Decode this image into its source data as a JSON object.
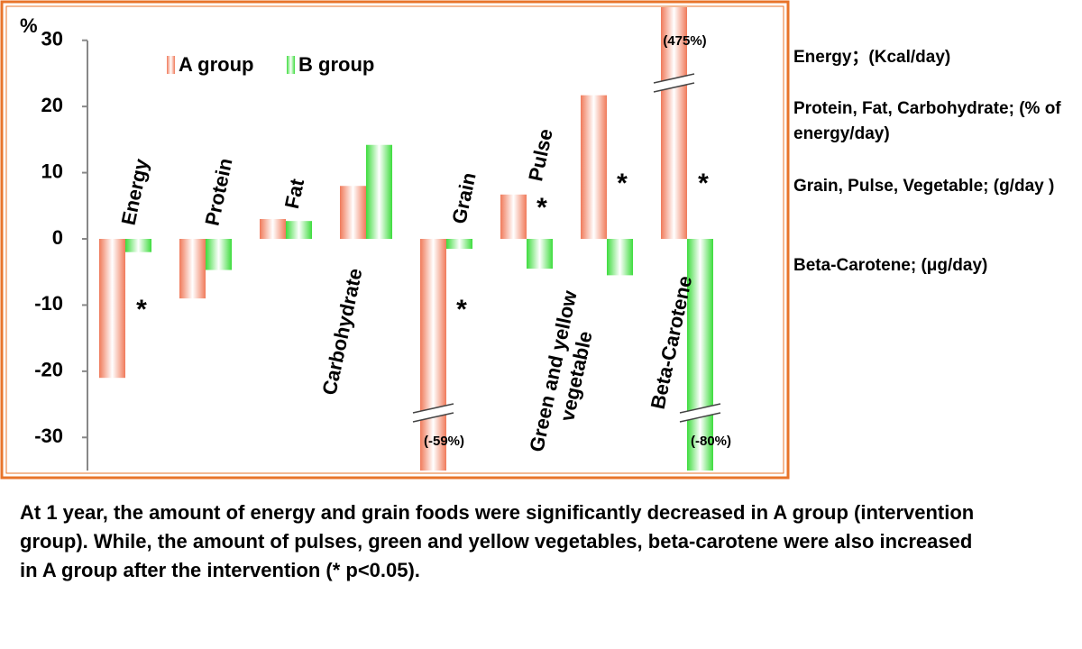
{
  "chart_data": {
    "type": "bar",
    "y_unit": "%",
    "categories": [
      "Energy",
      "Protein",
      "Fat",
      "Carbohydrate",
      "Grain",
      "Pulse",
      "Green and yellow vegetable",
      "Beta-Carotene"
    ],
    "series": [
      {
        "name": "A group",
        "color": "#f07a5a",
        "values": [
          -21,
          -9,
          3,
          8,
          -59,
          6.7,
          21.7,
          475
        ],
        "value_labels": [
          null,
          null,
          null,
          null,
          "(-59%)",
          null,
          null,
          "(475%)"
        ]
      },
      {
        "name": "B group",
        "color": "#3ddc3d",
        "values": [
          -2,
          -4.7,
          2.7,
          14.2,
          -1.5,
          -4.5,
          -5.5,
          -80
        ],
        "value_labels": [
          null,
          null,
          null,
          null,
          null,
          null,
          null,
          "(-80%)"
        ]
      }
    ],
    "significance": [
      "*",
      null,
      null,
      null,
      "*",
      "*",
      "*",
      "*"
    ],
    "ylim": [
      -35,
      35
    ],
    "yticks": [
      -30,
      -20,
      -10,
      0,
      10,
      20,
      30
    ],
    "legend": "upper left",
    "notes": [
      "Energy；(Kcal/day)",
      "Protein, Fat, Carbohydrate; (% of energy/day)",
      "Grain, Pulse, Vegetable; (g/day )",
      "Beta-Carotene; (μg/day)"
    ],
    "caption": "At 1 year, the amount of energy and grain foods were significantly decreased in A group (intervention group). While, the amount of pulses, green and yellow vegetables, beta-carotene were also increased in A group after the intervention (* p<0.05)."
  }
}
